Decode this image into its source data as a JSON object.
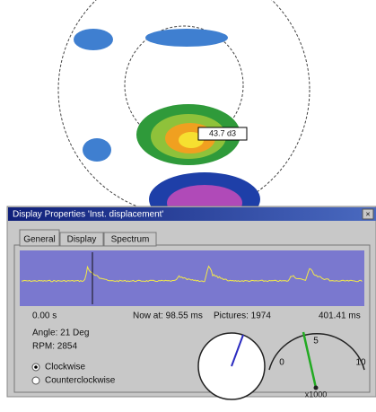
{
  "plot": {
    "marker_label": "43.7 d3"
  },
  "window": {
    "title": "Display Properties 'Inst. displacement'",
    "tabs": [
      "General",
      "Display",
      "Spectrum"
    ],
    "timeline": {
      "start": "0.00 s",
      "now": "Now at: 98.55 ms",
      "pictures": "Pictures: 1974",
      "end": "401.41 ms"
    },
    "angle": "Angle:  21 Deg",
    "rpm": "RPM:  2854",
    "direction": [
      "Clockwise",
      "Counterclockwise"
    ],
    "gauge": {
      "labels": [
        "0",
        "5",
        "10"
      ],
      "multiplier": "x1000"
    }
  }
}
